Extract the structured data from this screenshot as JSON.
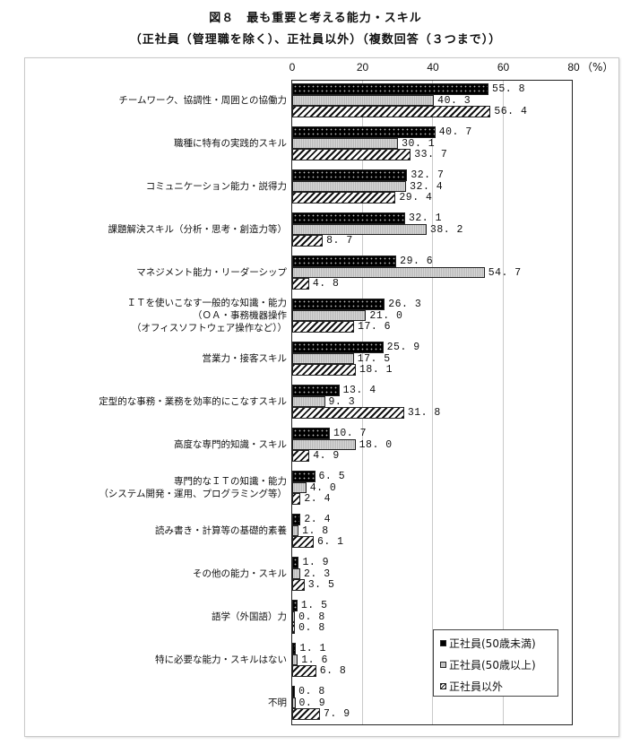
{
  "title": {
    "line1": "図８　最も重要と考える能力・スキル",
    "line2": "（正社員（管理職を除く）、正社員以外）（複数回答（３つまで））"
  },
  "axis": {
    "ticks": [
      "0",
      "20",
      "40",
      "60",
      "80"
    ],
    "unit": "（%）"
  },
  "legend": {
    "items": [
      "正社員(50歳未満)",
      "正社員(50歳以上)",
      "正社員以外"
    ]
  },
  "colors": {
    "series0": "#000000",
    "series1": "#c4c4c4",
    "series2": "#ffffff-hatched"
  },
  "chart_data": {
    "type": "bar",
    "orientation": "horizontal",
    "title": "図８　最も重要と考える能力・スキル（正社員（管理職を除く）、正社員以外）（複数回答（３つまで））",
    "xlabel": "（%）",
    "ylabel": "",
    "xlim": [
      0,
      80
    ],
    "grid": true,
    "legend_position": "lower right (inside plot)",
    "categories": [
      "チームワーク、協調性・周囲との協働力",
      "職種に特有の実践的スキル",
      "コミュニケーション能力・説得力",
      "課題解決スキル（分析・思考・創造力等）",
      "マネジメント能力・リーダーシップ",
      "ＩＴを使いこなす一般的な知識・能力\n（ＯＡ・事務機器操作\n（オフィスソフトウェア操作など））",
      "営業力・接客スキル",
      "定型的な事務・業務を効率的にこなすスキル",
      "高度な専門的知識・スキル",
      "専門的なＩＴの知識・能力\n（システム開発・運用、プログラミング等）",
      "読み書き・計算等の基礎的素養",
      "その他の能力・スキル",
      "語学（外国語）力",
      "特に必要な能力・スキルはない",
      "不明"
    ],
    "series": [
      {
        "name": "正社員(50歳未満)",
        "values": [
          55.8,
          40.7,
          32.7,
          32.1,
          29.6,
          26.3,
          25.9,
          13.4,
          10.7,
          6.5,
          2.4,
          1.9,
          1.5,
          1.1,
          0.8
        ]
      },
      {
        "name": "正社員(50歳以上)",
        "values": [
          40.3,
          30.1,
          32.4,
          38.2,
          54.7,
          21.0,
          17.5,
          9.3,
          18.0,
          4.0,
          1.8,
          2.3,
          0.8,
          1.6,
          0.9
        ]
      },
      {
        "name": "正社員以外",
        "values": [
          56.4,
          33.7,
          29.4,
          8.7,
          4.8,
          17.6,
          18.1,
          31.8,
          4.9,
          2.4,
          6.1,
          3.5,
          0.8,
          6.8,
          7.9
        ]
      }
    ]
  }
}
